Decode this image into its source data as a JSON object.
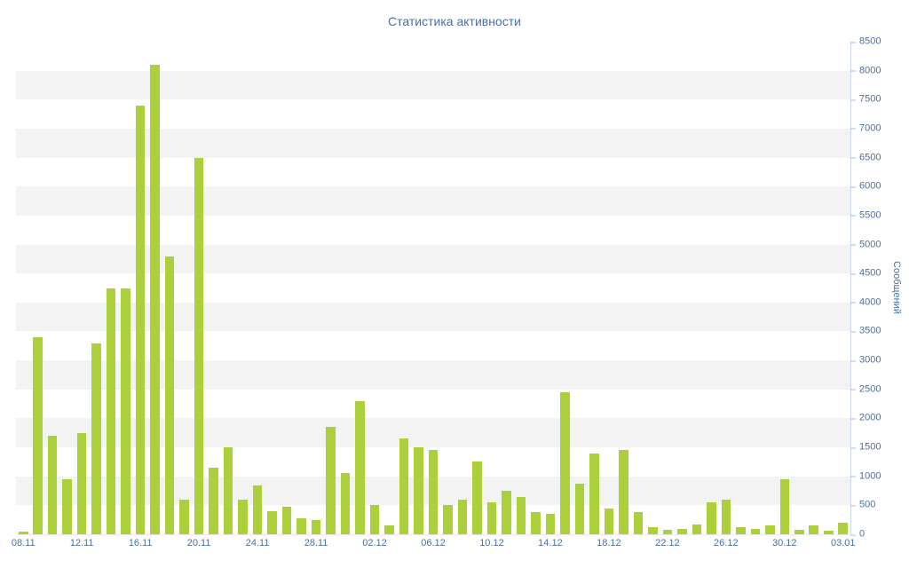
{
  "colors": {
    "bar": "#abd03c",
    "label": "#4a6fa5",
    "stripe": "#f3f3f3",
    "axis_line": "#cdd9ea"
  },
  "chart_data": {
    "type": "bar",
    "title": "Статистика активности",
    "xlabel": "",
    "ylabel": "Сообщений",
    "ylim": [
      0,
      8500
    ],
    "ytick_step": 500,
    "xtick_every": 4,
    "grid": "striped",
    "legend": "none",
    "categories": [
      "08.11",
      "09.11",
      "10.11",
      "11.11",
      "12.11",
      "13.11",
      "14.11",
      "15.11",
      "16.11",
      "17.11",
      "18.11",
      "19.11",
      "20.11",
      "21.11",
      "22.11",
      "23.11",
      "24.11",
      "25.11",
      "26.11",
      "27.11",
      "28.11",
      "29.11",
      "30.11",
      "01.12",
      "02.12",
      "03.12",
      "04.12",
      "05.12",
      "06.12",
      "07.12",
      "08.12",
      "09.12",
      "10.12",
      "11.12",
      "12.12",
      "13.12",
      "14.12",
      "15.12",
      "16.12",
      "17.12",
      "18.12",
      "19.12",
      "20.12",
      "21.12",
      "22.12",
      "23.12",
      "24.12",
      "25.12",
      "26.12",
      "27.12",
      "28.12",
      "29.12",
      "30.12",
      "31.12",
      "01.01",
      "02.01",
      "03.01"
    ],
    "values": [
      50,
      3400,
      1700,
      950,
      1750,
      3300,
      4250,
      4250,
      7400,
      8100,
      4800,
      600,
      6500,
      1150,
      1500,
      600,
      850,
      400,
      480,
      280,
      250,
      1850,
      1050,
      2300,
      500,
      150,
      1650,
      1500,
      1450,
      500,
      600,
      1250,
      550,
      750,
      650,
      380,
      350,
      2450,
      880,
      1400,
      450,
      1450,
      380,
      120,
      80,
      90,
      170,
      550,
      600,
      130,
      90,
      160,
      950,
      80,
      160,
      60,
      200
    ]
  }
}
